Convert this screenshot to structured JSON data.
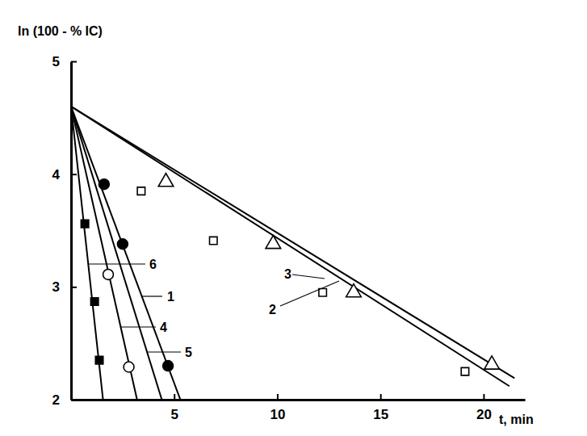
{
  "chart_data": {
    "type": "scatter",
    "x_label": "t, min",
    "y_label": "ln (100 - % IC)",
    "xlim": [
      0,
      22
    ],
    "xticks": [
      5,
      10,
      15,
      20
    ],
    "ylim": [
      2,
      5
    ],
    "yticks": [
      2,
      3,
      4,
      5
    ],
    "series": [
      {
        "name": "1",
        "color": "#000000",
        "marker": "filled-circle",
        "line_style": "solid",
        "x": [
          1.6,
          2.5,
          4.7
        ],
        "values": [
          3.91,
          3.38,
          2.3
        ],
        "fit": {
          "x": [
            0,
            5.3
          ],
          "values": [
            4.6,
            2.0
          ]
        }
      },
      {
        "name": "2",
        "color": "#000000",
        "marker": "open-square",
        "line_style": "solid",
        "x": [
          3.4,
          6.9,
          12.2,
          19.1
        ],
        "values": [
          3.85,
          3.41,
          2.95,
          2.25
        ],
        "fit": {
          "x": [
            0,
            21.25
          ],
          "values": [
            4.6,
            2.12
          ]
        }
      },
      {
        "name": "3",
        "color": "#000000",
        "marker": "open-triangle",
        "line_style": "solid",
        "x": [
          4.6,
          9.8,
          13.7,
          20.4
        ],
        "values": [
          3.93,
          3.38,
          2.95,
          2.31
        ],
        "fit": {
          "x": [
            0,
            21.5
          ],
          "values": [
            4.6,
            2.19
          ]
        }
      },
      {
        "name": "4",
        "color": "#000000",
        "marker": "open-circle",
        "line_style": "solid",
        "x": [
          1.8,
          2.8
        ],
        "values": [
          3.11,
          2.29
        ],
        "fit": {
          "x": [
            0,
            3.2
          ],
          "values": [
            4.6,
            2.0
          ]
        }
      },
      {
        "name": "5",
        "color": "#000000",
        "marker": "none",
        "line_style": "solid",
        "x": [],
        "values": [],
        "fit": {
          "x": [
            0,
            4.4
          ],
          "values": [
            4.6,
            2.0
          ]
        }
      },
      {
        "name": "6",
        "color": "#000000",
        "marker": "filled-square",
        "line_style": "solid",
        "x": [
          0.67,
          1.14,
          1.37
        ],
        "values": [
          3.56,
          2.87,
          2.35
        ],
        "fit": {
          "x": [
            0,
            1.55
          ],
          "values": [
            4.6,
            2.0
          ]
        }
      }
    ]
  }
}
